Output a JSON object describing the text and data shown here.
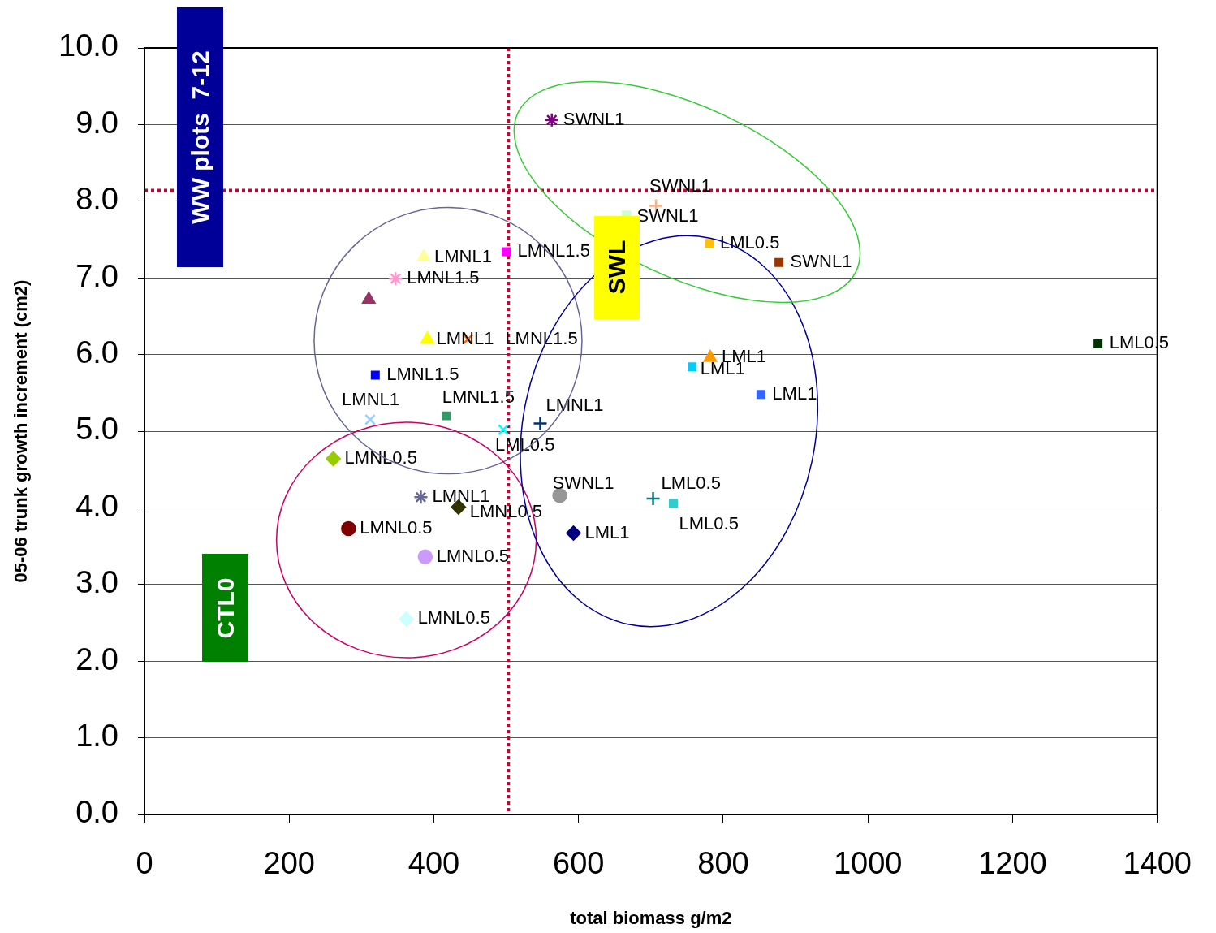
{
  "chart_data": {
    "type": "scatter",
    "xlabel": "total biomass g/m2",
    "ylabel": "05-06 trunk growth increment (cm2)",
    "xlim": [
      0,
      1400
    ],
    "xticks": [
      0,
      200,
      400,
      600,
      800,
      1000,
      1200,
      1400
    ],
    "ylim": [
      0,
      10
    ],
    "yticks": [
      {
        "value": 0,
        "label": "0.0"
      },
      {
        "value": 1,
        "label": "1.0"
      },
      {
        "value": 2,
        "label": "2.0"
      },
      {
        "value": 3,
        "label": "3.0"
      },
      {
        "value": 4,
        "label": "4.0"
      },
      {
        "value": 5,
        "label": "5.0"
      },
      {
        "value": 6,
        "label": "6.0"
      },
      {
        "value": 7,
        "label": "7.0"
      },
      {
        "value": 8,
        "label": "8.0"
      },
      {
        "value": 9,
        "label": "9.0"
      },
      {
        "value": 10,
        "label": "10.0"
      }
    ],
    "grid": "y",
    "legend": false,
    "annotations": [
      "WW plots  7-12",
      "SWL",
      "CTL0"
    ],
    "ref_lines": [
      {
        "axis": "y",
        "value": 8.14,
        "color": "#cc0033",
        "line_style": "dotted"
      },
      {
        "axis": "x",
        "value": 503,
        "color": "#cc0033",
        "line_style": "dotted"
      }
    ],
    "series": [
      {
        "name": "SWNL1",
        "color": "#800080",
        "x": [
          563
        ],
        "values": [
          9.06
        ]
      },
      {
        "name": "SWNL1",
        "color": "#f4b183",
        "marker": "cross",
        "x": [
          707
        ],
        "values": [
          7.94
        ]
      },
      {
        "name": "SWNL1",
        "color": "#ccffcc",
        "marker": "square",
        "x": [
          666
        ],
        "values": [
          7.82
        ]
      },
      {
        "name": "LML0.5",
        "color": "#ffc000",
        "marker": "square",
        "x": [
          781
        ],
        "values": [
          7.45
        ]
      },
      {
        "name": "SWNL1",
        "color": "#993300",
        "marker": "square",
        "x": [
          877
        ],
        "values": [
          7.2
        ]
      },
      {
        "name": "LMNL1",
        "color": "#ffff99",
        "marker": "triangle",
        "x": [
          386
        ],
        "values": [
          7.27
        ]
      },
      {
        "name": "LMNL1.5",
        "color": "#ff00ff",
        "marker": "square",
        "x": [
          500
        ],
        "values": [
          7.34
        ]
      },
      {
        "name": "LMNL1.5",
        "color": "#ff99cc",
        "x": [
          347
        ],
        "values": [
          6.99
        ]
      },
      {
        "color": "#993366",
        "marker": "triangle",
        "x": [
          310
        ],
        "values": [
          6.72
        ]
      },
      {
        "name": "LMNL1",
        "color": "#ffff00",
        "marker": "triangle",
        "x": [
          391
        ],
        "values": [
          6.2
        ]
      },
      {
        "name": "LMNL1.5",
        "color": "#ff6600",
        "marker": "x",
        "x": [
          447
        ],
        "values": [
          6.2
        ]
      },
      {
        "name": "LMNL1.5",
        "color": "#0000ff",
        "marker": "square",
        "x": [
          319
        ],
        "values": [
          5.73
        ]
      },
      {
        "name": "LMNL1",
        "color": "#99ccff",
        "marker": "x",
        "x": [
          312
        ],
        "values": [
          5.15
        ]
      },
      {
        "name": "LMNL1.5",
        "color": "#339966",
        "marker": "square",
        "x": [
          417
        ],
        "values": [
          5.2
        ]
      },
      {
        "name": "LML0.5",
        "color": "#00ffff",
        "marker": "x",
        "x": [
          496
        ],
        "values": [
          5.02
        ]
      },
      {
        "name": "LMNL1",
        "color": "#003366",
        "marker": "cross",
        "x": [
          547
        ],
        "values": [
          5.1
        ]
      },
      {
        "name": "LMNL0.5",
        "color": "#99cc00",
        "marker": "diamond",
        "x": [
          261
        ],
        "values": [
          4.64
        ]
      },
      {
        "name": "LMNL1",
        "color": "#666699",
        "x": [
          382
        ],
        "values": [
          4.14
        ]
      },
      {
        "name": "LMNL0.5",
        "color": "#333300",
        "marker": "diamond",
        "x": [
          434
        ],
        "values": [
          4.01
        ]
      },
      {
        "name": "SWNL1",
        "color": "#969696",
        "marker": "circle",
        "x": [
          574
        ],
        "values": [
          4.16
        ]
      },
      {
        "name": "LMNL0.5",
        "color": "#800000",
        "marker": "circle",
        "x": [
          282
        ],
        "values": [
          3.73
        ]
      },
      {
        "name": "LMNL0.5",
        "color": "#cc99ff",
        "marker": "circle",
        "x": [
          388
        ],
        "values": [
          3.36
        ]
      },
      {
        "name": "LMNL0.5",
        "color": "#ccffff",
        "marker": "diamond",
        "x": [
          362
        ],
        "values": [
          2.55
        ]
      },
      {
        "name": "LML1",
        "color": "#000080",
        "marker": "diamond",
        "x": [
          593
        ],
        "values": [
          3.67
        ]
      },
      {
        "name": "LML0.5",
        "color": "#008080",
        "marker": "cross",
        "x": [
          703
        ],
        "values": [
          4.12
        ]
      },
      {
        "name": "LML0.5",
        "color": "#33cccc",
        "marker": "square",
        "x": [
          731
        ],
        "values": [
          4.06
        ]
      },
      {
        "name": "LML1",
        "color": "#ff9900",
        "marker": "triangle",
        "x": [
          782
        ],
        "values": [
          5.96
        ]
      },
      {
        "name": "LML1",
        "color": "#00ccff",
        "marker": "square",
        "x": [
          757
        ],
        "values": [
          5.84
        ]
      },
      {
        "name": "LML1",
        "color": "#3366ff",
        "marker": "square",
        "x": [
          852
        ],
        "values": [
          5.48
        ]
      },
      {
        "name": "LML0.5",
        "color": "#003300",
        "marker": "square",
        "x": [
          1318
        ],
        "values": [
          6.14
        ]
      }
    ]
  }
}
